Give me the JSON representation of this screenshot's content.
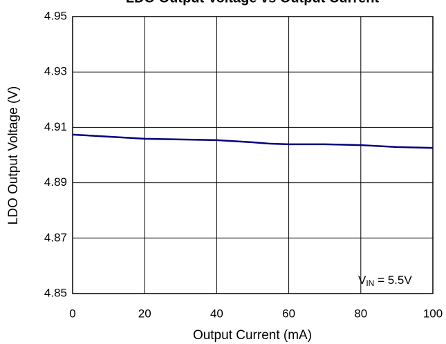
{
  "chart_data": {
    "type": "line",
    "title": "LDO Output Voltage vs Output Current",
    "x_label": "Output Current (mA)",
    "y_label": "LDO Output Voltage (V)",
    "annotation": {
      "main": "V",
      "sub": "IN",
      "rest": " = 5.5V"
    },
    "x": [
      0,
      20,
      40,
      50,
      55,
      60,
      70,
      80,
      90,
      100
    ],
    "series": [
      {
        "name": "VIN = 5.5V",
        "color": "#00007f",
        "values": [
          4.9074,
          4.9059,
          4.9054,
          4.9046,
          4.9041,
          4.9039,
          4.9039,
          4.9036,
          4.9029,
          4.9026
        ]
      }
    ],
    "xlim": [
      0,
      100
    ],
    "xticks": [
      0,
      20,
      40,
      60,
      80,
      100
    ],
    "ylim": [
      4.85,
      4.95
    ],
    "yticks": [
      4.85,
      4.87,
      4.89,
      4.91,
      4.93,
      4.95
    ],
    "grid": true
  }
}
